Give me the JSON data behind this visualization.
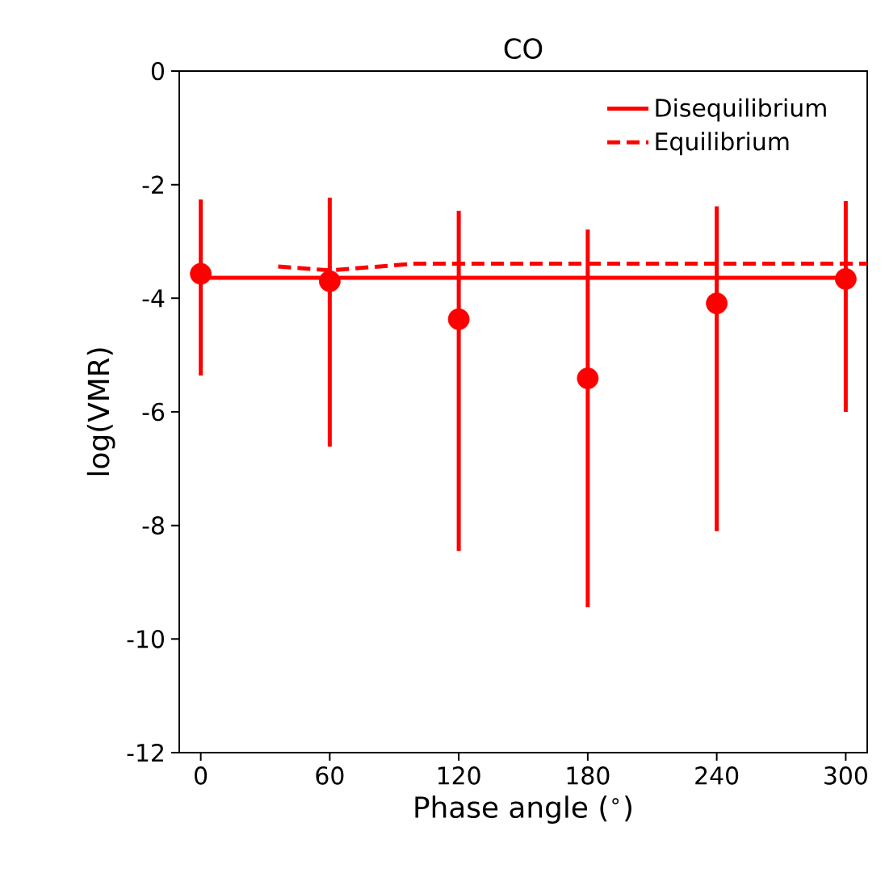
{
  "chart_data": {
    "type": "line",
    "title": "CO",
    "xlabel": "Phase angle ($^{∘}$)",
    "ylabel": "log(VMR)",
    "xlim": [
      -10,
      310
    ],
    "xticks": [
      0,
      60,
      120,
      180,
      240,
      300
    ],
    "ylim": [
      -12,
      0
    ],
    "yticks": [
      -12,
      -10,
      -8,
      -6,
      -4,
      -2,
      0
    ],
    "legend": "top right",
    "grid": false,
    "series": [
      {
        "name": "Disequilibrium",
        "color": "#ff0000",
        "line_style": "solid",
        "marker": "none",
        "x": [
          0,
          300
        ],
        "values": [
          -3.64,
          -3.64
        ]
      },
      {
        "name": "Equilibrium",
        "color": "#ff0000",
        "line_style": "dashed",
        "marker": "none",
        "x": [
          36,
          60,
          100,
          310
        ],
        "values": [
          -3.44,
          -3.51,
          -3.39,
          -3.39
        ]
      },
      {
        "type": "scatter",
        "color": "#ff0000",
        "marker": "circle",
        "x": [
          0,
          60,
          120,
          180,
          240,
          300
        ],
        "values": [
          -3.57,
          -3.7,
          -4.37,
          -5.41,
          -4.09,
          -3.66
        ],
        "errors": [
          [
            -5.36,
            -2.26
          ],
          [
            -6.61,
            -2.23
          ],
          [
            -8.45,
            -2.46
          ],
          [
            -9.44,
            -2.79
          ],
          [
            -8.1,
            -2.38
          ],
          [
            -6.0,
            -2.29
          ]
        ]
      }
    ]
  }
}
